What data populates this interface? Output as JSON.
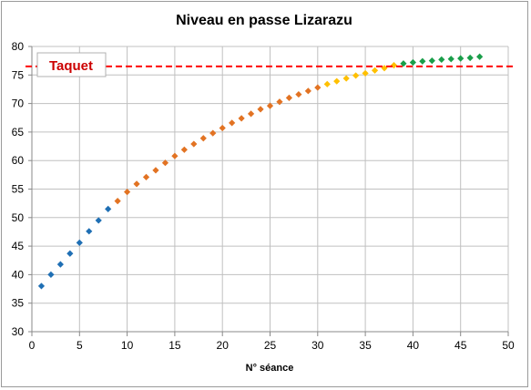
{
  "chart_data": {
    "type": "scatter",
    "title": "Niveau en passe Lizarazu",
    "xlabel": "N° séance",
    "ylabel": "",
    "xlim": [
      0,
      50
    ],
    "ylim": [
      30,
      80
    ],
    "xticks": [
      0,
      5,
      10,
      15,
      20,
      25,
      30,
      35,
      40,
      45,
      50
    ],
    "yticks": [
      30,
      35,
      40,
      45,
      50,
      55,
      60,
      65,
      70,
      75,
      80
    ],
    "grid": true,
    "marker": "diamond",
    "series": [
      {
        "color": "#1f6fb4",
        "points": [
          [
            1,
            38.0
          ],
          [
            2,
            40.0
          ],
          [
            3,
            41.8
          ],
          [
            4,
            43.7
          ],
          [
            5,
            45.6
          ],
          [
            6,
            47.6
          ],
          [
            7,
            49.5
          ],
          [
            8,
            51.5
          ]
        ]
      },
      {
        "color": "#e27323",
        "points": [
          [
            9,
            52.9
          ],
          [
            10,
            54.5
          ],
          [
            11,
            55.9
          ],
          [
            12,
            57.1
          ],
          [
            13,
            58.3
          ],
          [
            14,
            59.6
          ],
          [
            15,
            60.8
          ],
          [
            16,
            61.9
          ],
          [
            17,
            62.9
          ],
          [
            18,
            63.9
          ],
          [
            19,
            64.8
          ],
          [
            20,
            65.7
          ],
          [
            21,
            66.6
          ],
          [
            22,
            67.4
          ],
          [
            23,
            68.2
          ],
          [
            24,
            69.0
          ],
          [
            25,
            69.6
          ],
          [
            26,
            70.3
          ],
          [
            27,
            71.0
          ],
          [
            28,
            71.6
          ],
          [
            29,
            72.2
          ],
          [
            30,
            72.8
          ]
        ]
      },
      {
        "color": "#ffc000",
        "points": [
          [
            31,
            73.4
          ],
          [
            32,
            73.9
          ],
          [
            33,
            74.4
          ],
          [
            34,
            74.9
          ],
          [
            35,
            75.3
          ],
          [
            36,
            75.8
          ],
          [
            37,
            76.2
          ],
          [
            38,
            76.7
          ]
        ]
      },
      {
        "color": "#1a9e4a",
        "points": [
          [
            39,
            77.0
          ],
          [
            40,
            77.2
          ],
          [
            41,
            77.4
          ],
          [
            42,
            77.5
          ],
          [
            43,
            77.7
          ],
          [
            44,
            77.8
          ],
          [
            45,
            77.9
          ],
          [
            46,
            78.0
          ],
          [
            47,
            78.2
          ]
        ]
      }
    ],
    "reference_line": {
      "label": "Taquet",
      "y": 76.5,
      "color": "#ff0000",
      "style": "dashed"
    }
  }
}
